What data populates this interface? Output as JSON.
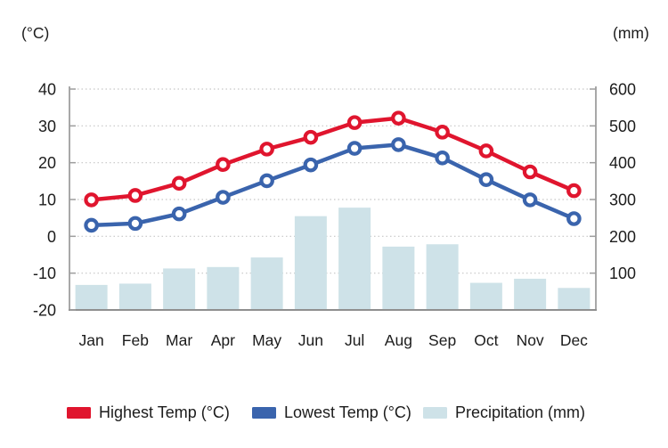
{
  "chart": {
    "background_color": "#ffffff",
    "text_color": "#1c1c1c",
    "grid_color": "#c6c6c6",
    "axis_color": "#9e9e9e",
    "left_axis_unit": "(°C)",
    "right_axis_unit": "(mm)",
    "left_axis_ticks": [
      40,
      30,
      20,
      10,
      0,
      -10,
      -20
    ],
    "right_axis_ticks": [
      600,
      500,
      400,
      300,
      200,
      100
    ]
  },
  "chart_data": {
    "type": "combo (line + bar)",
    "title": "",
    "categories": [
      "Jan",
      "Feb",
      "Mar",
      "Apr",
      "May",
      "Jun",
      "Jul",
      "Aug",
      "Sep",
      "Oct",
      "Nov",
      "Dec"
    ],
    "series": [
      {
        "name": "Highest Temp (°C)",
        "type": "line",
        "axis": "left",
        "color": "#e0152e",
        "marker": "open-circle",
        "values": [
          9.9,
          11.1,
          14.4,
          19.5,
          23.7,
          26.9,
          30.9,
          32.1,
          28.3,
          23.2,
          17.5,
          12.4
        ]
      },
      {
        "name": "Lowest Temp (°C)",
        "type": "line",
        "axis": "left",
        "color": "#3a64ad",
        "marker": "open-circle",
        "values": [
          3.0,
          3.5,
          6.1,
          10.6,
          15.1,
          19.4,
          23.9,
          24.9,
          21.3,
          15.4,
          9.9,
          4.8
        ]
      },
      {
        "name": "Precipitation (mm)",
        "type": "bar",
        "axis": "right",
        "color": "#cee2e8",
        "values": [
          68.0,
          71.5,
          112.7,
          116.6,
          142.5,
          254.8,
          277.9,
          172.0,
          178.4,
          73.7,
          84.8,
          59.8
        ]
      }
    ],
    "left_ylabel": "(°C)",
    "right_ylabel": "(mm)",
    "left_ylim": [
      -20,
      40
    ],
    "right_ylim": [
      0,
      600
    ],
    "grid": true,
    "gridlines": "horizontal-dotted",
    "legend_position": "bottom"
  },
  "legend": {
    "items": [
      {
        "label": "Highest Temp (°C)"
      },
      {
        "label": "Lowest Temp (°C)"
      },
      {
        "label": "Precipitation (mm)"
      }
    ]
  }
}
